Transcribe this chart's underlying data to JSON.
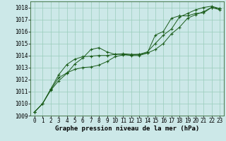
{
  "background_color": "#cce8e8",
  "plot_bg_color": "#cce8e8",
  "grid_color": "#99ccbb",
  "line_color": "#1a5c1a",
  "xlabel": "Graphe pression niveau de la mer (hPa)",
  "xlabel_fontsize": 6.5,
  "tick_fontsize": 5.5,
  "xlim": [
    -0.5,
    23.5
  ],
  "ylim": [
    1009,
    1018.5
  ],
  "yticks": [
    1009,
    1010,
    1011,
    1012,
    1013,
    1014,
    1015,
    1016,
    1017,
    1018
  ],
  "xticks": [
    0,
    1,
    2,
    3,
    4,
    5,
    6,
    7,
    8,
    9,
    10,
    11,
    12,
    13,
    14,
    15,
    16,
    17,
    18,
    19,
    20,
    21,
    22,
    23
  ],
  "series": [
    [
      1009.3,
      1010.0,
      1011.1,
      1011.9,
      1012.5,
      1013.3,
      1013.8,
      1014.5,
      1014.65,
      1014.3,
      1014.1,
      1014.1,
      1014.0,
      1014.0,
      1014.2,
      1015.7,
      1016.0,
      1017.1,
      1017.3,
      1017.3,
      1017.5,
      1017.55,
      1018.0,
      1017.8
    ],
    [
      1009.3,
      1010.0,
      1011.15,
      1012.15,
      1012.55,
      1012.85,
      1013.0,
      1013.05,
      1013.2,
      1013.5,
      1013.9,
      1014.05,
      1014.05,
      1014.1,
      1014.3,
      1015.0,
      1015.7,
      1016.2,
      1017.2,
      1017.5,
      1017.8,
      1018.0,
      1018.1,
      1017.9
    ],
    [
      1009.3,
      1010.0,
      1011.2,
      1012.4,
      1013.25,
      1013.7,
      1013.9,
      1013.95,
      1014.0,
      1014.0,
      1014.1,
      1014.15,
      1014.1,
      1014.1,
      1014.2,
      1014.5,
      1015.0,
      1015.8,
      1016.35,
      1017.1,
      1017.4,
      1017.65,
      1018.0,
      1017.9
    ]
  ]
}
